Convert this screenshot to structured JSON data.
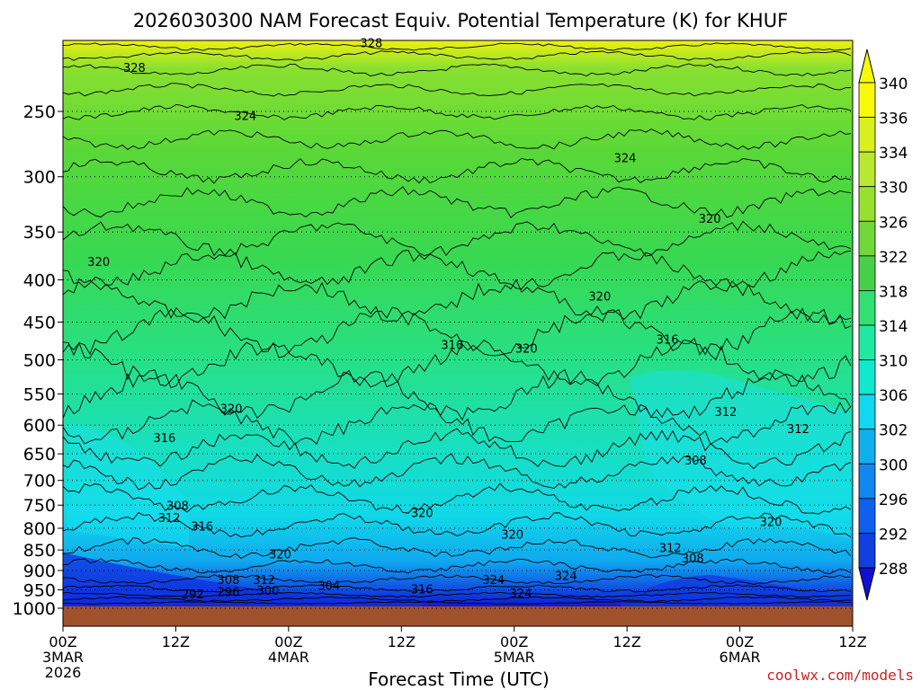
{
  "chart_data": {
    "type": "heatmap",
    "title": "2026030300 NAM Forecast Equiv. Potential Temperature (K) for KHUF",
    "xlabel": "Forecast Time (UTC)",
    "ylabel": "",
    "credit": "coolwx.com/models",
    "x_range_hours": [
      0,
      84
    ],
    "x_ticks": [
      {
        "hour": 0,
        "label": "00Z",
        "date": "3MAR",
        "year": "2026"
      },
      {
        "hour": 12,
        "label": "12Z",
        "date": "",
        "year": ""
      },
      {
        "hour": 24,
        "label": "00Z",
        "date": "4MAR",
        "year": ""
      },
      {
        "hour": 36,
        "label": "12Z",
        "date": "",
        "year": ""
      },
      {
        "hour": 48,
        "label": "00Z",
        "date": "5MAR",
        "year": ""
      },
      {
        "hour": 60,
        "label": "12Z",
        "date": "",
        "year": ""
      },
      {
        "hour": 72,
        "label": "00Z",
        "date": "6MAR",
        "year": ""
      },
      {
        "hour": 84,
        "label": "12Z",
        "date": "",
        "year": ""
      }
    ],
    "y_axis": {
      "scale": "log-pressure",
      "inverted": true,
      "range_hpa": [
        1000,
        200
      ]
    },
    "y_ticks": [
      "250",
      "300",
      "350",
      "400",
      "450",
      "500",
      "550",
      "600",
      "650",
      "700",
      "750",
      "800",
      "850",
      "900",
      "950",
      "1000"
    ],
    "grid": true,
    "legend": "right",
    "colorbar": {
      "labels": [
        "340",
        "336",
        "334",
        "330",
        "326",
        "322",
        "318",
        "314",
        "310",
        "306",
        "302",
        "300",
        "296",
        "292",
        "288"
      ],
      "colors": [
        "#f8f808",
        "#d8f020",
        "#b8e830",
        "#98e030",
        "#70d838",
        "#48d048",
        "#30e070",
        "#20e8a0",
        "#10e8d0",
        "#10d8f0",
        "#10b0f0",
        "#1088f0",
        "#1060f0",
        "#1040e0",
        "#1010d0"
      ]
    },
    "contour_labels": [
      {
        "hour": 7.6,
        "hpa": 224,
        "value": "328"
      },
      {
        "hour": 32.8,
        "hpa": 209,
        "value": "328"
      },
      {
        "hour": 19.4,
        "hpa": 256,
        "value": "324"
      },
      {
        "hour": 59.8,
        "hpa": 288,
        "value": "324"
      },
      {
        "hour": 3.8,
        "hpa": 385,
        "value": "320"
      },
      {
        "hour": 68.8,
        "hpa": 341,
        "value": "320"
      },
      {
        "hour": 57.1,
        "hpa": 424,
        "value": "320"
      },
      {
        "hour": 49.3,
        "hpa": 490,
        "value": "320"
      },
      {
        "hour": 17.9,
        "hpa": 580,
        "value": "320"
      },
      {
        "hour": 38.2,
        "hpa": 775,
        "value": "320"
      },
      {
        "hour": 47.8,
        "hpa": 823,
        "value": "320"
      },
      {
        "hour": 23.1,
        "hpa": 870,
        "value": "320"
      },
      {
        "hour": 75.3,
        "hpa": 795,
        "value": "320"
      },
      {
        "hour": 41.4,
        "hpa": 485,
        "value": "316"
      },
      {
        "hour": 64.3,
        "hpa": 478,
        "value": "316"
      },
      {
        "hour": 10.8,
        "hpa": 629,
        "value": "316"
      },
      {
        "hour": 14.8,
        "hpa": 805,
        "value": "316"
      },
      {
        "hour": 38.2,
        "hpa": 959,
        "value": "316"
      },
      {
        "hour": 70.5,
        "hpa": 585,
        "value": "312"
      },
      {
        "hour": 78.2,
        "hpa": 613,
        "value": "312"
      },
      {
        "hour": 64.6,
        "hpa": 855,
        "value": "312"
      },
      {
        "hour": 11.3,
        "hpa": 786,
        "value": "312"
      },
      {
        "hour": 21.4,
        "hpa": 935,
        "value": "312"
      },
      {
        "hour": 67.3,
        "hpa": 670,
        "value": "308"
      },
      {
        "hour": 12.2,
        "hpa": 760,
        "value": "308"
      },
      {
        "hour": 67.0,
        "hpa": 880,
        "value": "308"
      },
      {
        "hour": 17.6,
        "hpa": 934,
        "value": "308"
      },
      {
        "hour": 28.3,
        "hpa": 950,
        "value": "304"
      },
      {
        "hour": 21.8,
        "hpa": 963,
        "value": "300"
      },
      {
        "hour": 17.6,
        "hpa": 967,
        "value": "296"
      },
      {
        "hour": 13.8,
        "hpa": 973,
        "value": "292"
      },
      {
        "hour": 45.8,
        "hpa": 934,
        "value": "324"
      },
      {
        "hour": 53.5,
        "hpa": 924,
        "value": "324"
      },
      {
        "hour": 48.7,
        "hpa": 970,
        "value": "324"
      }
    ]
  }
}
